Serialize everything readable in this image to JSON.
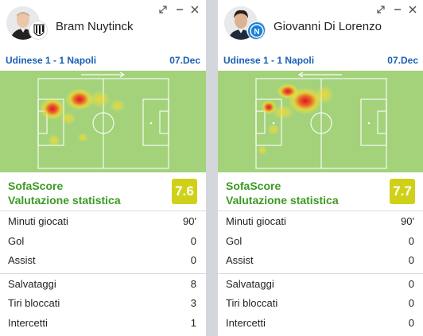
{
  "left": {
    "player_name": "Bram Nuytinck",
    "team_badge_icon": "udinese-badge-icon",
    "avatar_icon": "player-avatar-icon",
    "match": "Udinese 1 - 1 Napoli",
    "date": "07.Dec",
    "attack_direction": "right",
    "rating_title_line1": "SofaScore",
    "rating_title_line2": "Valutazione statistica",
    "rating": "7.6",
    "stats": [
      {
        "label": "Minuti giocati",
        "value": "90'"
      },
      {
        "label": "Gol",
        "value": "0"
      },
      {
        "label": "Assist",
        "value": "0"
      },
      {
        "label": "Salvataggi",
        "value": "8"
      },
      {
        "label": "Tiri bloccati",
        "value": "3"
      },
      {
        "label": "Intercetti",
        "value": "1"
      }
    ]
  },
  "right": {
    "player_name": "Giovanni Di Lorenzo",
    "team_badge_icon": "napoli-badge-icon",
    "avatar_icon": "player-avatar-icon",
    "match": "Udinese 1 - 1 Napoli",
    "date": "07.Dec",
    "attack_direction": "left",
    "rating_title_line1": "SofaScore",
    "rating_title_line2": "Valutazione statistica",
    "rating": "7.7",
    "stats": [
      {
        "label": "Minuti giocati",
        "value": "90'"
      },
      {
        "label": "Gol",
        "value": "0"
      },
      {
        "label": "Assist",
        "value": "0"
      },
      {
        "label": "Salvataggi",
        "value": "0"
      },
      {
        "label": "Tiri bloccati",
        "value": "0"
      },
      {
        "label": "Intercetti",
        "value": "0"
      }
    ]
  },
  "icons": {
    "expand": "expand-icon",
    "minimize": "minimize-icon",
    "close": "close-icon"
  },
  "colors": {
    "accent_green": "#3c9a23",
    "rating_badge": "#cfd119",
    "link_blue": "#1a5fb4",
    "pitch_green": "#a3d27a"
  }
}
